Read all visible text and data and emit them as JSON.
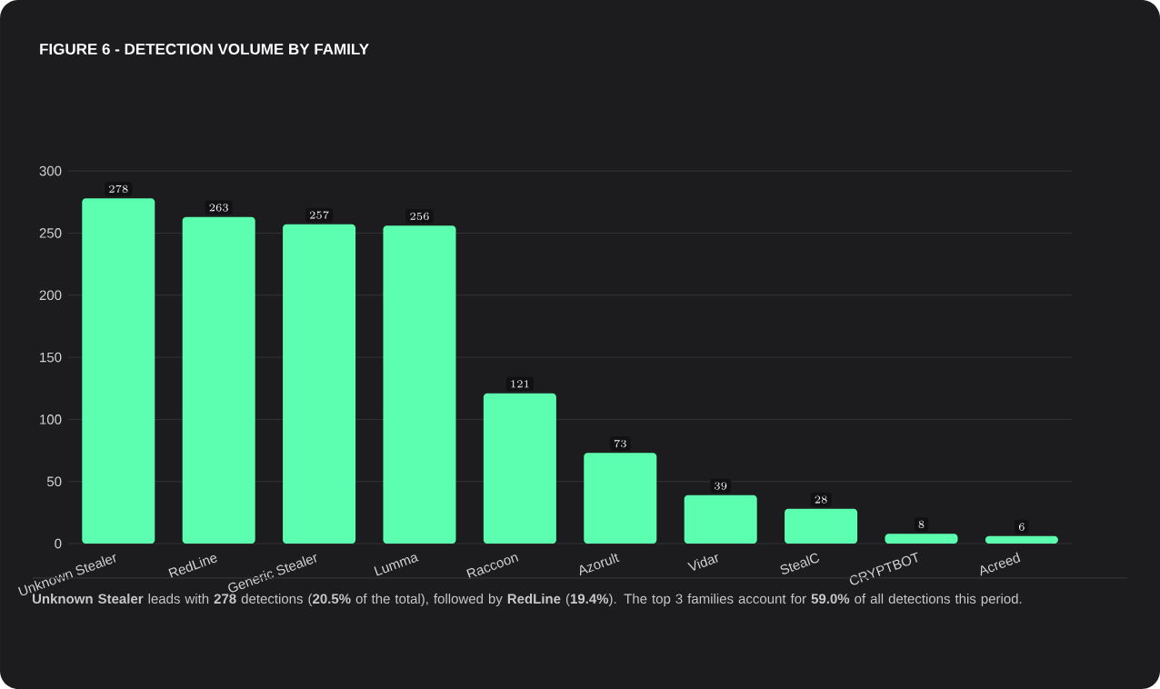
{
  "chart_data": {
    "type": "bar",
    "title": "FIGURE 6 - DETECTION VOLUME BY FAMILY",
    "categories": [
      "Unknown Stealer",
      "RedLine",
      "Generic Stealer",
      "Lumma",
      "Raccoon",
      "Azorult",
      "Vidar",
      "StealC",
      "CRYPTBOT",
      "Acreed"
    ],
    "values": [
      278,
      263,
      257,
      256,
      121,
      73,
      39,
      28,
      8,
      6
    ],
    "color": "#5cffb0",
    "ylim": [
      0,
      300
    ],
    "yticks": [
      0,
      50,
      100,
      150,
      200,
      250,
      300
    ],
    "grid": "y",
    "data_labels": true,
    "annotations": [
      "**Unknown Stealer** leads with **278** detections (**20.5%** of the total), followed by **RedLine** (**19.4%**). The top 3 families account for **59.0%** of all detections this period."
    ]
  }
}
